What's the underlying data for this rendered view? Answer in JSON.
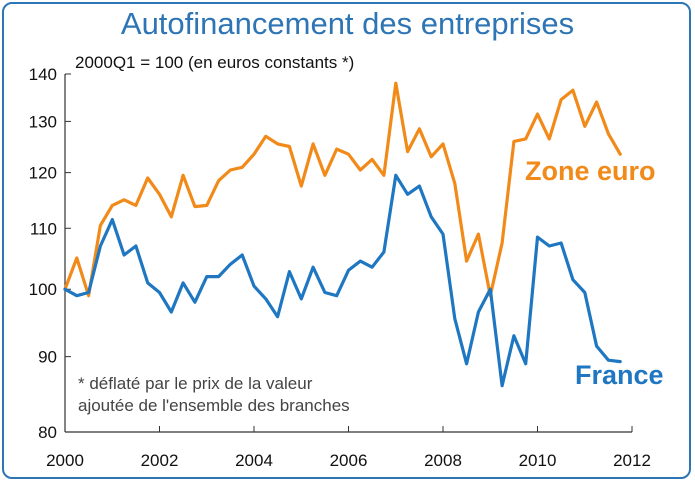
{
  "chart_data": {
    "type": "line",
    "title": "Autofinancement des entreprises",
    "subtitle": "2000Q1 = 100 (en euros constants *)",
    "note": [
      "* déflaté par le prix de la valeur",
      "ajoutée de l'ensemble des branches"
    ],
    "y_scale": "log",
    "ylim": [
      80,
      140
    ],
    "yticks": [
      80,
      90,
      100,
      110,
      120,
      130,
      140
    ],
    "xlim": [
      2000,
      2012
    ],
    "xticks": [
      2000,
      2002,
      2004,
      2006,
      2008,
      2010,
      2012
    ],
    "grid": false,
    "colors": {
      "zone_euro": "#f28a1a",
      "france": "#1f77c2",
      "accent": "#2e75b6"
    },
    "x": [
      2000.0,
      2000.25,
      2000.5,
      2000.75,
      2001.0,
      2001.25,
      2001.5,
      2001.75,
      2002.0,
      2002.25,
      2002.5,
      2002.75,
      2003.0,
      2003.25,
      2003.5,
      2003.75,
      2004.0,
      2004.25,
      2004.5,
      2004.75,
      2005.0,
      2005.25,
      2005.5,
      2005.75,
      2006.0,
      2006.25,
      2006.5,
      2006.75,
      2007.0,
      2007.25,
      2007.5,
      2007.75,
      2008.0,
      2008.25,
      2008.5,
      2008.75,
      2009.0,
      2009.25,
      2009.5,
      2009.75,
      2010.0,
      2010.25,
      2010.5,
      2010.75,
      2011.0,
      2011.25,
      2011.5,
      2011.75
    ],
    "series": [
      {
        "key": "zone_euro",
        "name": "Zone euro",
        "values": [
          100.0,
          105.0,
          99.0,
          110.5,
          114.0,
          115.0,
          114.0,
          119.0,
          116.0,
          112.0,
          119.5,
          113.8,
          114.0,
          118.5,
          120.5,
          121.0,
          123.5,
          127.0,
          125.5,
          125.0,
          117.5,
          125.5,
          119.5,
          124.5,
          123.5,
          120.5,
          122.5,
          119.5,
          138.0,
          124.0,
          128.5,
          123.0,
          125.5,
          118.0,
          104.5,
          109.0,
          99.0,
          107.5,
          126.0,
          126.5,
          131.5,
          126.5,
          134.5,
          136.5,
          129.0,
          134.0,
          127.5,
          123.5
        ]
      },
      {
        "key": "france",
        "name": "France",
        "values": [
          100.0,
          99.0,
          99.5,
          107.0,
          111.5,
          105.5,
          107.0,
          101.0,
          99.5,
          96.5,
          101.0,
          98.0,
          102.0,
          102.0,
          104.0,
          105.5,
          100.5,
          98.5,
          95.8,
          102.8,
          98.5,
          103.5,
          99.5,
          99.0,
          103.0,
          104.5,
          103.5,
          106.0,
          119.5,
          116.0,
          117.5,
          112.0,
          109.0,
          95.5,
          89.0,
          96.5,
          100.0,
          86.0,
          93.0,
          89.0,
          108.5,
          107.0,
          107.5,
          101.5,
          99.5,
          91.5,
          89.5,
          89.3
        ]
      }
    ]
  }
}
